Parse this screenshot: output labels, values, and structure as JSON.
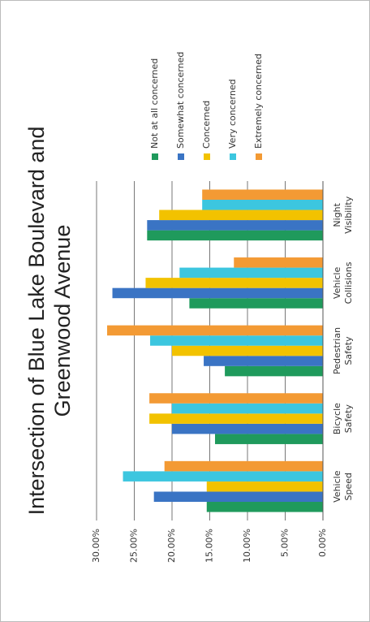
{
  "chart_data": {
    "type": "bar",
    "title": "Intersection of Blue Lake Boulevard and Greenwood Avenue",
    "categories": [
      "Vehicle Speed",
      "Bicycle Safety",
      "Pedestrian Safety",
      "Vehicle Collisions",
      "Night Visibility"
    ],
    "series": [
      {
        "name": "Not at all concerned",
        "color": "#1f9a5c",
        "values": [
          15.4,
          14.3,
          13,
          17.7,
          23.3
        ]
      },
      {
        "name": "Somewhat concerned",
        "color": "#3a74c4",
        "values": [
          22.4,
          20,
          15.8,
          27.9,
          23.3
        ]
      },
      {
        "name": "Concerned",
        "color": "#f2c200",
        "values": [
          15.4,
          23,
          20,
          23.5,
          21.7
        ]
      },
      {
        "name": "Very concerned",
        "color": "#3cc6df",
        "values": [
          26.5,
          20,
          22.9,
          19,
          16
        ]
      },
      {
        "name": "Extremely concerned",
        "color": "#f39a34",
        "values": [
          21,
          23,
          28.6,
          11.8,
          16
        ]
      }
    ],
    "ylim": [
      0,
      30
    ],
    "yticks": [
      {
        "value": 0,
        "label": "0.00%"
      },
      {
        "value": 5,
        "label": "5.00%"
      },
      {
        "value": 10,
        "label": "10.00%"
      },
      {
        "value": 15,
        "label": "15.00%"
      },
      {
        "value": 20,
        "label": "20.00%"
      },
      {
        "value": 25,
        "label": "25.00%"
      },
      {
        "value": 30,
        "label": "30.00%"
      }
    ],
    "grid": true,
    "legend": "right"
  }
}
